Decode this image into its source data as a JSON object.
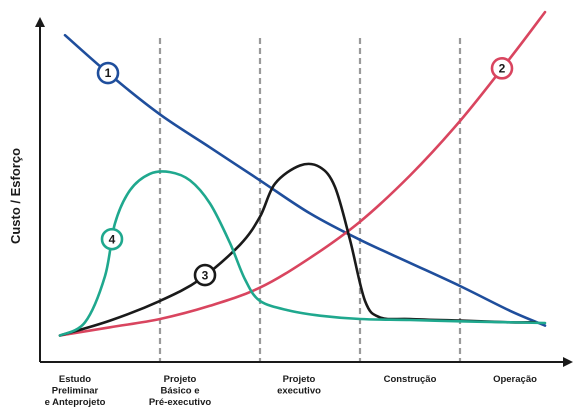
{
  "chart_data": {
    "type": "line",
    "ylabel": "Custo / Esforço",
    "xlabel": "",
    "grid": false,
    "x_range": [
      0,
      5
    ],
    "y_range": [
      0,
      10
    ],
    "phases": [
      {
        "lines": [
          "Estudo",
          "Preliminar",
          "e Anteprojeto"
        ]
      },
      {
        "lines": [
          "Projeto",
          "Básico e",
          "Pré-executivo"
        ]
      },
      {
        "lines": [
          "Projeto",
          "executivo"
        ]
      },
      {
        "lines": [
          "Construção"
        ]
      },
      {
        "lines": [
          "Operação"
        ]
      }
    ],
    "phase_boundaries": [
      1,
      2,
      3,
      4
    ],
    "series": [
      {
        "marker": "1",
        "color": "#1f4e9c",
        "points": [
          [
            0.05,
            9.6
          ],
          [
            0.5,
            8.4
          ],
          [
            1,
            7.2
          ],
          [
            1.5,
            6.2
          ],
          [
            2,
            5.2
          ],
          [
            2.5,
            4.2
          ],
          [
            3,
            3.4
          ],
          [
            3.5,
            2.7
          ],
          [
            4,
            2.0
          ],
          [
            4.5,
            1.25
          ],
          [
            4.85,
            0.8
          ]
        ],
        "marker_at": 0.48
      },
      {
        "marker": "2",
        "color": "#d9455f",
        "points": [
          [
            0,
            0.5
          ],
          [
            0.5,
            0.75
          ],
          [
            1,
            1.0
          ],
          [
            1.5,
            1.4
          ],
          [
            2,
            1.95
          ],
          [
            2.5,
            2.85
          ],
          [
            3,
            3.95
          ],
          [
            3.5,
            5.35
          ],
          [
            4,
            7.0
          ],
          [
            4.5,
            8.9
          ],
          [
            4.85,
            10.3
          ]
        ],
        "marker_at": 4.42
      },
      {
        "marker": "3",
        "color": "#1a1a1a",
        "points": [
          [
            0,
            0.5
          ],
          [
            0.5,
            0.95
          ],
          [
            1,
            1.55
          ],
          [
            1.4,
            2.2
          ],
          [
            1.8,
            3.25
          ],
          [
            2.0,
            4.1
          ],
          [
            2.15,
            5.1
          ],
          [
            2.4,
            5.65
          ],
          [
            2.6,
            5.6
          ],
          [
            2.75,
            5.0
          ],
          [
            2.9,
            3.4
          ],
          [
            3.05,
            1.55
          ],
          [
            3.2,
            1.05
          ],
          [
            3.5,
            1.0
          ],
          [
            4,
            0.95
          ],
          [
            4.5,
            0.9
          ],
          [
            4.75,
            0.9
          ]
        ],
        "marker_at": 1.45
      },
      {
        "marker": "4",
        "color": "#1fa88e",
        "points": [
          [
            0,
            0.5
          ],
          [
            0.25,
            0.9
          ],
          [
            0.45,
            2.3
          ],
          [
            0.55,
            3.9
          ],
          [
            0.7,
            4.9
          ],
          [
            0.9,
            5.4
          ],
          [
            1.1,
            5.45
          ],
          [
            1.3,
            5.2
          ],
          [
            1.5,
            4.5
          ],
          [
            1.7,
            3.3
          ],
          [
            1.85,
            2.2
          ],
          [
            2,
            1.55
          ],
          [
            2.3,
            1.25
          ],
          [
            2.6,
            1.1
          ],
          [
            3,
            1.0
          ],
          [
            3.5,
            0.97
          ],
          [
            4,
            0.93
          ],
          [
            4.5,
            0.9
          ],
          [
            4.85,
            0.88
          ]
        ],
        "marker_at": 0.52
      }
    ]
  }
}
